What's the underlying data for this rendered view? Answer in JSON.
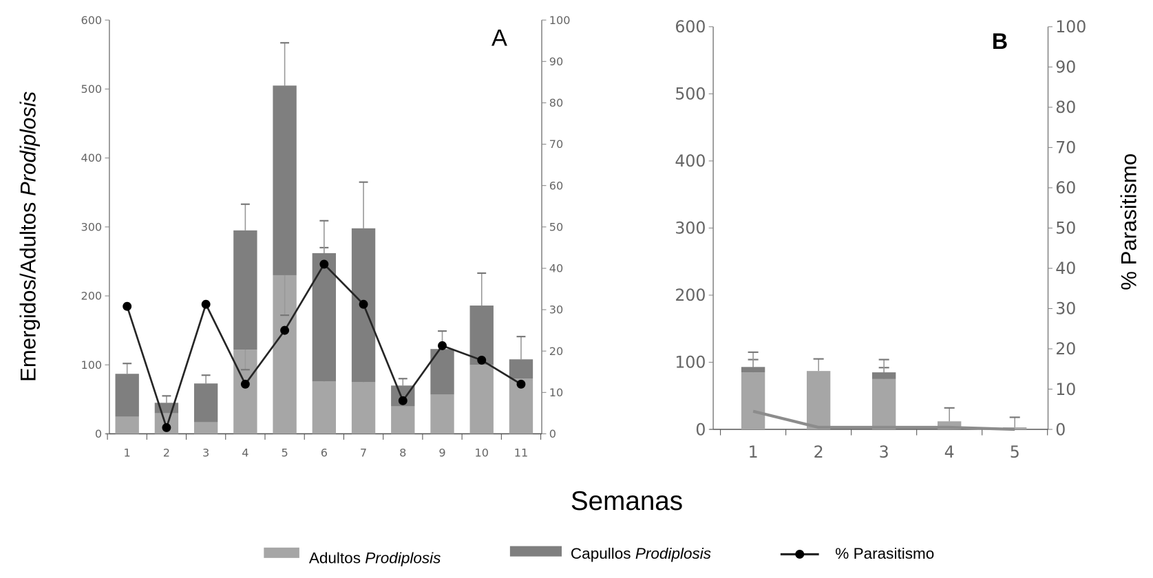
{
  "chart_data": [
    {
      "type": "bar",
      "stacked": true,
      "panel_label": "A",
      "categories": [
        "1",
        "2",
        "3",
        "4",
        "5",
        "6",
        "7",
        "8",
        "9",
        "10",
        "11"
      ],
      "ylabel_left": "Emergidos/Adultos Prodiplosis",
      "ylim_left": [
        0,
        600
      ],
      "yticks_left": [
        "0",
        "100",
        "200",
        "300",
        "400",
        "500",
        "600"
      ],
      "ylim_right": [
        0,
        100
      ],
      "yticks_right": [
        "0",
        "10",
        "20",
        "30",
        "40",
        "50",
        "60",
        "70",
        "80",
        "90",
        "100"
      ],
      "series": [
        {
          "name": "Adultos Prodiplosis",
          "color": "#a6a6a6",
          "values": [
            25,
            30,
            17,
            122,
            230,
            76,
            75,
            40,
            57,
            100,
            80
          ],
          "error_top": [
            null,
            null,
            null,
            93,
            172,
            270,
            208,
            null,
            null,
            127,
            93
          ]
        },
        {
          "name": "Capullos Prodiplosis",
          "color": "#7f7f7f",
          "values": [
            62,
            15,
            56,
            173,
            275,
            186,
            223,
            30,
            66,
            86,
            28
          ],
          "error_top": [
            102,
            55,
            85,
            333,
            567,
            309,
            365,
            80,
            149,
            233,
            141
          ]
        },
        {
          "name": "% Parasitismo",
          "type": "line",
          "axis": "right",
          "color": "#262626",
          "values": [
            30.8,
            1.5,
            31.3,
            12,
            25,
            41,
            31.3,
            8,
            21.3,
            17.8,
            12
          ]
        }
      ]
    },
    {
      "type": "bar",
      "stacked": true,
      "panel_label": "B",
      "categories": [
        "1",
        "2",
        "3",
        "4",
        "5"
      ],
      "ylabel_right": "% Parasitismo",
      "ylim_left": [
        0,
        600
      ],
      "yticks_left": [
        "0",
        "100",
        "200",
        "300",
        "400",
        "500",
        "600"
      ],
      "ylim_right": [
        0,
        100
      ],
      "yticks_right": [
        "0",
        "10",
        "20",
        "30",
        "40",
        "50",
        "60",
        "70",
        "80",
        "90",
        "100"
      ],
      "series": [
        {
          "name": "Adultos Prodiplosis",
          "color": "#a6a6a6",
          "values": [
            85,
            87,
            75,
            12,
            3
          ],
          "error_top": [
            104,
            null,
            92,
            null,
            null
          ]
        },
        {
          "name": "Capullos Prodiplosis",
          "color": "#7f7f7f",
          "values": [
            8,
            0,
            10,
            0,
            0
          ],
          "error_top": [
            115,
            105,
            104,
            32,
            18
          ]
        },
        {
          "name": "% Parasitismo",
          "type": "line",
          "axis": "right",
          "color": "#8c8c8c",
          "values": [
            4.5,
            0.5,
            0.5,
            0.5,
            0
          ]
        }
      ]
    }
  ],
  "xlabel": "Semanas",
  "legend": {
    "placement": "bottom",
    "items": [
      {
        "prefix": "Adultos ",
        "italic": "Prodiplosis",
        "color": "#a6a6a6"
      },
      {
        "prefix": "Capullos ",
        "italic": "Prodiplosis",
        "color": "#7f7f7f"
      },
      {
        "prefix": "% Parasitismo",
        "italic": "",
        "color": "#000000"
      }
    ]
  },
  "ylabel_left_prefix": "Emergidos/Adultos ",
  "ylabel_left_italic": "Prodiplosis"
}
